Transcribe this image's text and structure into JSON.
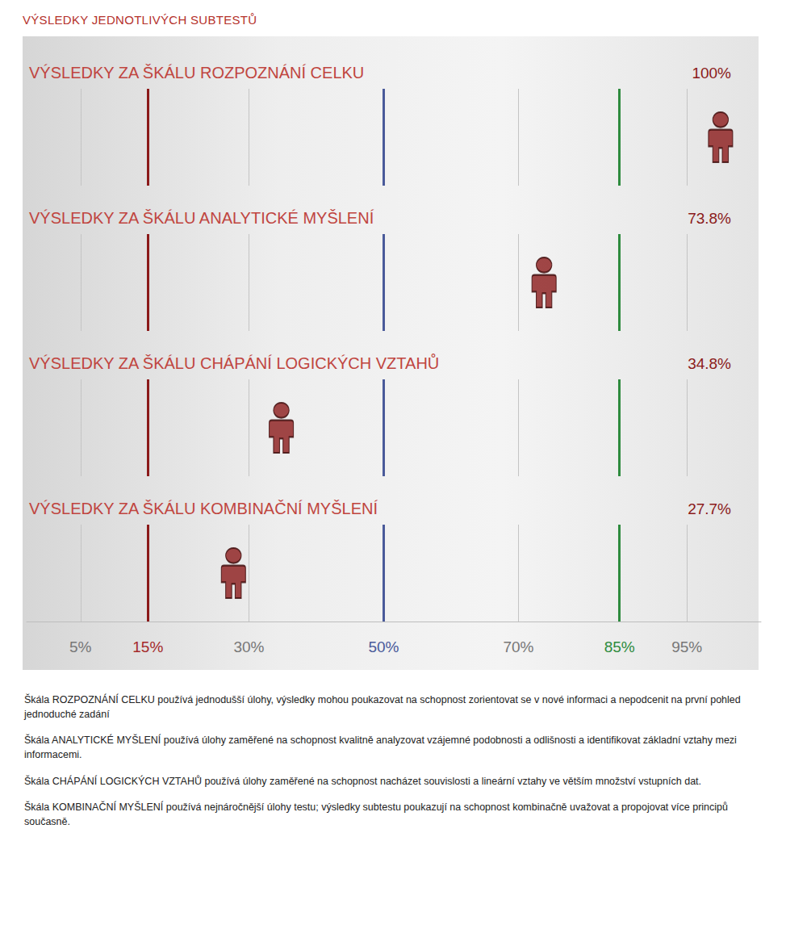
{
  "chart_data": {
    "type": "scatter",
    "title": "VÝSLEDKY JEDNOTLIVÝCH SUBTESTŮ",
    "categories": [
      "VÝSLEDKY ZA ŠKÁLU ROZPOZNÁNÍ CELKU",
      "VÝSLEDKY ZA ŠKÁLU ANALYTICKÉ MYŠLENÍ",
      "VÝSLEDKY ZA ŠKÁLU CHÁPÁNÍ LOGICKÝCH VZTAHŮ",
      "VÝSLEDKY ZA ŠKÁLU KOMBINAČNÍ MYŠLENÍ"
    ],
    "values": [
      100,
      73.8,
      34.8,
      27.7
    ],
    "value_labels": [
      "100%",
      "73.8%",
      "34.8%",
      "27.7%"
    ],
    "data_labels": true,
    "orientation": "horizontal",
    "marker": "person",
    "color": "#8b1a1a",
    "xlim": [
      -3,
      106
    ],
    "xticks": [
      {
        "value": 5,
        "label": "5%"
      },
      {
        "value": 15,
        "label": "15%"
      },
      {
        "value": 30,
        "label": "30%"
      },
      {
        "value": 50,
        "label": "50%"
      },
      {
        "value": 70,
        "label": "70%"
      },
      {
        "value": 85,
        "label": "85%"
      },
      {
        "value": 95,
        "label": "95%"
      }
    ],
    "tick_labels": "x",
    "grid": true,
    "annotations": [
      "Škála ROZPOZNÁNÍ CELKU používá jednodušší úlohy, výsledky mohou poukazovat na schopnost zorientovat se v nové informaci a nepodcenit na první pohled jednoduché zadání",
      "Škála ANALYTICKÉ MYŠLENÍ používá úlohy zaměřené na schopnost kvalitně analyzovat vzájemné podobnosti a odlišnosti a identifikovat základní vztahy mezi informacemi.",
      "Škála CHÁPÁNÍ LOGICKÝCH VZTAHŮ používá úlohy zaměřené na schopnost nacházet souvislosti a lineární vztahy ve větším množství vstupních dat.",
      "Škála KOMBINAČNÍ MYŠLENÍ používá nejnáročnější úlohy testu; výsledky subtestu poukazují na schopnost kombinačně uvažovat a propojovat více principů současně."
    ]
  }
}
